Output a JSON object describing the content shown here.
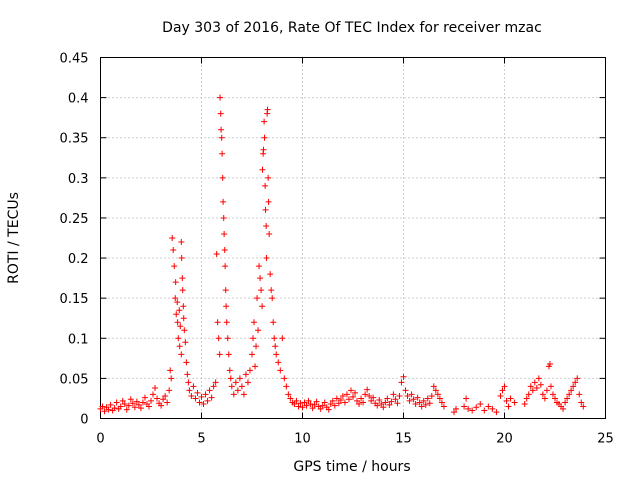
{
  "chart_data": {
    "type": "scatter",
    "title": "Day 303 of 2016, Rate Of TEC Index for receiver mzac",
    "xlabel": "GPS time / hours",
    "ylabel": "ROTI / TECUs",
    "xlim": [
      0,
      25
    ],
    "ylim": [
      0,
      0.45
    ],
    "xticks": [
      0,
      5,
      10,
      15,
      20,
      25
    ],
    "xtick_labels": [
      "0",
      "5",
      "10",
      "15",
      "20",
      "25"
    ],
    "yticks": [
      0,
      0.05,
      0.1,
      0.15,
      0.2,
      0.25,
      0.3,
      0.35,
      0.4,
      0.45
    ],
    "ytick_labels": [
      "0",
      "0.05",
      "0.1",
      "0.15",
      "0.2",
      "0.25",
      "0.3",
      "0.35",
      "0.4",
      "0.45"
    ],
    "grid": true,
    "marker": "+",
    "color": "#ff0000",
    "series": [
      {
        "name": "ROTI",
        "points": [
          [
            0.0,
            0.012
          ],
          [
            0.1,
            0.015
          ],
          [
            0.2,
            0.009
          ],
          [
            0.3,
            0.014
          ],
          [
            0.4,
            0.011
          ],
          [
            0.5,
            0.017
          ],
          [
            0.6,
            0.01
          ],
          [
            0.7,
            0.013
          ],
          [
            0.8,
            0.02
          ],
          [
            0.9,
            0.012
          ],
          [
            1.0,
            0.015
          ],
          [
            1.1,
            0.022
          ],
          [
            1.2,
            0.018
          ],
          [
            1.3,
            0.011
          ],
          [
            1.4,
            0.016
          ],
          [
            1.5,
            0.024
          ],
          [
            1.6,
            0.019
          ],
          [
            1.7,
            0.014
          ],
          [
            1.8,
            0.021
          ],
          [
            1.9,
            0.017
          ],
          [
            2.0,
            0.013
          ],
          [
            2.1,
            0.02
          ],
          [
            2.2,
            0.026
          ],
          [
            2.3,
            0.018
          ],
          [
            2.4,
            0.015
          ],
          [
            2.5,
            0.022
          ],
          [
            2.6,
            0.03
          ],
          [
            2.7,
            0.038
          ],
          [
            2.8,
            0.025
          ],
          [
            2.9,
            0.019
          ],
          [
            3.0,
            0.016
          ],
          [
            3.1,
            0.024
          ],
          [
            3.2,
            0.028
          ],
          [
            3.3,
            0.02
          ],
          [
            3.4,
            0.035
          ],
          [
            3.45,
            0.06
          ],
          [
            3.5,
            0.05
          ],
          [
            3.55,
            0.225
          ],
          [
            3.6,
            0.21
          ],
          [
            3.65,
            0.19
          ],
          [
            3.7,
            0.15
          ],
          [
            3.72,
            0.17
          ],
          [
            3.75,
            0.13
          ],
          [
            3.8,
            0.145
          ],
          [
            3.82,
            0.12
          ],
          [
            3.85,
            0.1
          ],
          [
            3.9,
            0.135
          ],
          [
            3.92,
            0.09
          ],
          [
            3.95,
            0.115
          ],
          [
            4.0,
            0.08
          ],
          [
            4.0,
            0.22
          ],
          [
            4.02,
            0.2
          ],
          [
            4.05,
            0.175
          ],
          [
            4.07,
            0.16
          ],
          [
            4.1,
            0.14
          ],
          [
            4.12,
            0.125
          ],
          [
            4.15,
            0.11
          ],
          [
            4.2,
            0.095
          ],
          [
            4.25,
            0.07
          ],
          [
            4.3,
            0.055
          ],
          [
            4.35,
            0.045
          ],
          [
            4.4,
            0.035
          ],
          [
            4.5,
            0.028
          ],
          [
            4.6,
            0.04
          ],
          [
            4.7,
            0.025
          ],
          [
            4.8,
            0.032
          ],
          [
            4.9,
            0.02
          ],
          [
            5.0,
            0.027
          ],
          [
            5.1,
            0.018
          ],
          [
            5.2,
            0.03
          ],
          [
            5.3,
            0.022
          ],
          [
            5.4,
            0.035
          ],
          [
            5.5,
            0.026
          ],
          [
            5.6,
            0.04
          ],
          [
            5.7,
            0.045
          ],
          [
            5.75,
            0.205
          ],
          [
            5.8,
            0.12
          ],
          [
            5.85,
            0.1
          ],
          [
            5.9,
            0.08
          ],
          [
            5.92,
            0.4
          ],
          [
            5.95,
            0.38
          ],
          [
            5.97,
            0.36
          ],
          [
            6.0,
            0.35
          ],
          [
            6.02,
            0.33
          ],
          [
            6.05,
            0.3
          ],
          [
            6.07,
            0.27
          ],
          [
            6.1,
            0.25
          ],
          [
            6.12,
            0.23
          ],
          [
            6.15,
            0.21
          ],
          [
            6.17,
            0.19
          ],
          [
            6.2,
            0.16
          ],
          [
            6.22,
            0.14
          ],
          [
            6.25,
            0.12
          ],
          [
            6.3,
            0.1
          ],
          [
            6.35,
            0.08
          ],
          [
            6.4,
            0.06
          ],
          [
            6.45,
            0.05
          ],
          [
            6.5,
            0.04
          ],
          [
            6.6,
            0.03
          ],
          [
            6.7,
            0.045
          ],
          [
            6.8,
            0.035
          ],
          [
            6.9,
            0.05
          ],
          [
            7.0,
            0.04
          ],
          [
            7.1,
            0.03
          ],
          [
            7.2,
            0.055
          ],
          [
            7.3,
            0.045
          ],
          [
            7.4,
            0.06
          ],
          [
            7.5,
            0.08
          ],
          [
            7.55,
            0.1
          ],
          [
            7.6,
            0.12
          ],
          [
            7.65,
            0.065
          ],
          [
            7.7,
            0.09
          ],
          [
            7.75,
            0.15
          ],
          [
            7.8,
            0.11
          ],
          [
            7.85,
            0.19
          ],
          [
            7.9,
            0.175
          ],
          [
            7.95,
            0.16
          ],
          [
            8.0,
            0.14
          ],
          [
            8.02,
            0.31
          ],
          [
            8.05,
            0.33
          ],
          [
            8.07,
            0.335
          ],
          [
            8.1,
            0.37
          ],
          [
            8.12,
            0.35
          ],
          [
            8.15,
            0.29
          ],
          [
            8.17,
            0.26
          ],
          [
            8.2,
            0.24
          ],
          [
            8.22,
            0.2
          ],
          [
            8.25,
            0.38
          ],
          [
            8.27,
            0.385
          ],
          [
            8.3,
            0.3
          ],
          [
            8.32,
            0.27
          ],
          [
            8.35,
            0.23
          ],
          [
            8.4,
            0.18
          ],
          [
            8.45,
            0.16
          ],
          [
            8.5,
            0.15
          ],
          [
            8.55,
            0.12
          ],
          [
            8.6,
            0.1
          ],
          [
            8.65,
            0.09
          ],
          [
            8.7,
            0.08
          ],
          [
            8.8,
            0.07
          ],
          [
            8.9,
            0.06
          ],
          [
            9.0,
            0.1
          ],
          [
            9.1,
            0.05
          ],
          [
            9.2,
            0.04
          ],
          [
            9.3,
            0.03
          ],
          [
            9.4,
            0.025
          ],
          [
            9.5,
            0.02
          ],
          [
            9.6,
            0.018
          ],
          [
            9.7,
            0.022
          ],
          [
            9.8,
            0.015
          ],
          [
            9.9,
            0.019
          ],
          [
            10.0,
            0.014
          ],
          [
            10.1,
            0.02
          ],
          [
            10.2,
            0.016
          ],
          [
            10.3,
            0.022
          ],
          [
            10.4,
            0.018
          ],
          [
            10.5,
            0.013
          ],
          [
            10.6,
            0.017
          ],
          [
            10.7,
            0.021
          ],
          [
            10.8,
            0.015
          ],
          [
            10.9,
            0.012
          ],
          [
            11.0,
            0.016
          ],
          [
            11.1,
            0.02
          ],
          [
            11.2,
            0.014
          ],
          [
            11.3,
            0.011
          ],
          [
            11.4,
            0.018
          ],
          [
            11.5,
            0.022
          ],
          [
            11.6,
            0.016
          ],
          [
            11.7,
            0.025
          ],
          [
            11.8,
            0.019
          ],
          [
            11.9,
            0.023
          ],
          [
            12.0,
            0.028
          ],
          [
            12.1,
            0.02
          ],
          [
            12.2,
            0.03
          ],
          [
            12.3,
            0.024
          ],
          [
            12.4,
            0.035
          ],
          [
            12.5,
            0.027
          ],
          [
            12.6,
            0.032
          ],
          [
            12.7,
            0.022
          ],
          [
            12.8,
            0.018
          ],
          [
            12.9,
            0.025
          ],
          [
            13.0,
            0.02
          ],
          [
            13.1,
            0.03
          ],
          [
            13.2,
            0.036
          ],
          [
            13.3,
            0.028
          ],
          [
            13.4,
            0.022
          ],
          [
            13.5,
            0.026
          ],
          [
            13.6,
            0.019
          ],
          [
            13.7,
            0.016
          ],
          [
            13.8,
            0.023
          ],
          [
            13.9,
            0.018
          ],
          [
            14.0,
            0.014
          ],
          [
            14.1,
            0.02
          ],
          [
            14.2,
            0.025
          ],
          [
            14.3,
            0.017
          ],
          [
            14.4,
            0.021
          ],
          [
            14.5,
            0.03
          ],
          [
            14.6,
            0.024
          ],
          [
            14.7,
            0.019
          ],
          [
            14.8,
            0.028
          ],
          [
            14.9,
            0.045
          ],
          [
            15.0,
            0.052
          ],
          [
            15.1,
            0.035
          ],
          [
            15.2,
            0.028
          ],
          [
            15.3,
            0.022
          ],
          [
            15.4,
            0.03
          ],
          [
            15.5,
            0.024
          ],
          [
            15.6,
            0.018
          ],
          [
            15.7,
            0.026
          ],
          [
            15.8,
            0.02
          ],
          [
            15.9,
            0.015
          ],
          [
            16.0,
            0.022
          ],
          [
            16.1,
            0.017
          ],
          [
            16.2,
            0.025
          ],
          [
            16.3,
            0.019
          ],
          [
            16.4,
            0.028
          ],
          [
            16.5,
            0.04
          ],
          [
            16.6,
            0.035
          ],
          [
            16.7,
            0.03
          ],
          [
            16.8,
            0.025
          ],
          [
            16.9,
            0.02
          ],
          [
            17.0,
            0.015
          ],
          [
            17.5,
            0.008
          ],
          [
            17.6,
            0.012
          ],
          [
            18.0,
            0.015
          ],
          [
            18.1,
            0.025
          ],
          [
            18.2,
            0.012
          ],
          [
            18.4,
            0.01
          ],
          [
            18.6,
            0.014
          ],
          [
            18.8,
            0.018
          ],
          [
            19.0,
            0.01
          ],
          [
            19.2,
            0.015
          ],
          [
            19.4,
            0.012
          ],
          [
            19.6,
            0.008
          ],
          [
            19.8,
            0.028
          ],
          [
            19.9,
            0.035
          ],
          [
            20.0,
            0.04
          ],
          [
            20.1,
            0.022
          ],
          [
            20.2,
            0.015
          ],
          [
            20.3,
            0.025
          ],
          [
            20.5,
            0.02
          ],
          [
            21.0,
            0.018
          ],
          [
            21.1,
            0.025
          ],
          [
            21.2,
            0.03
          ],
          [
            21.3,
            0.04
          ],
          [
            21.4,
            0.035
          ],
          [
            21.5,
            0.045
          ],
          [
            21.6,
            0.038
          ],
          [
            21.7,
            0.05
          ],
          [
            21.8,
            0.042
          ],
          [
            21.9,
            0.03
          ],
          [
            22.0,
            0.025
          ],
          [
            22.1,
            0.035
          ],
          [
            22.2,
            0.065
          ],
          [
            22.25,
            0.068
          ],
          [
            22.3,
            0.04
          ],
          [
            22.4,
            0.03
          ],
          [
            22.5,
            0.025
          ],
          [
            22.6,
            0.02
          ],
          [
            22.7,
            0.018
          ],
          [
            22.8,
            0.015
          ],
          [
            22.9,
            0.012
          ],
          [
            23.0,
            0.02
          ],
          [
            23.1,
            0.025
          ],
          [
            23.2,
            0.03
          ],
          [
            23.3,
            0.035
          ],
          [
            23.4,
            0.04
          ],
          [
            23.5,
            0.045
          ],
          [
            23.6,
            0.05
          ],
          [
            23.7,
            0.03
          ],
          [
            23.8,
            0.02
          ],
          [
            23.9,
            0.015
          ]
        ]
      }
    ]
  }
}
